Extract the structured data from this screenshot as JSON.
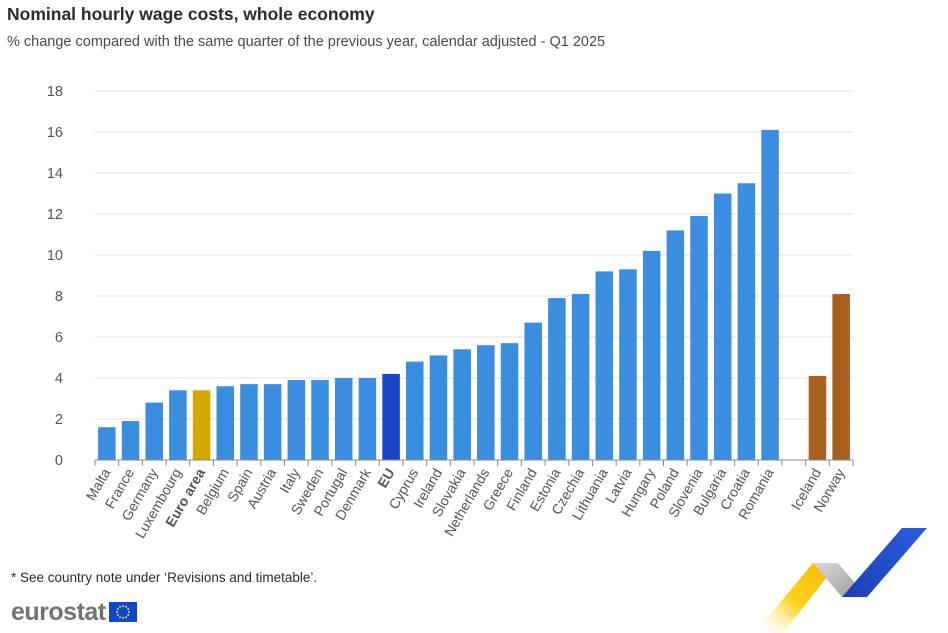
{
  "header": {
    "title": "Nominal hourly wage costs, whole economy",
    "subtitle": "% change compared with the same quarter of the previous year, calendar adjusted - Q1 2025"
  },
  "footer": {
    "note": "* See country note under ‘Revisions and timetable’.",
    "logo_text": "eurostat"
  },
  "colors": {
    "country": "#3b8ddf",
    "euro_area": "#d4a800",
    "eu": "#1946c7",
    "efta": "#a8601e",
    "grid": "#e0e0e0",
    "axis_text": "#555555"
  },
  "chart_data": {
    "type": "bar",
    "title": "Nominal hourly wage costs, whole economy",
    "subtitle": "% change compared with the same quarter of the previous year, calendar adjusted - Q1 2025",
    "ylim": [
      0,
      18
    ],
    "yticks": [
      "0",
      "2",
      "4",
      "6",
      "8",
      "10",
      "12",
      "14",
      "16",
      "18"
    ],
    "grid": true,
    "bars": [
      {
        "label": "Malta",
        "value": 1.6,
        "group": "country"
      },
      {
        "label": "France",
        "value": 1.9,
        "group": "country"
      },
      {
        "label": "Germany",
        "value": 2.8,
        "group": "country"
      },
      {
        "label": "Luxembourg",
        "value": 3.4,
        "group": "country"
      },
      {
        "label": "Euro area",
        "value": 3.4,
        "group": "euro_area"
      },
      {
        "label": "Belgium",
        "value": 3.6,
        "group": "country"
      },
      {
        "label": "Spain",
        "value": 3.7,
        "group": "country"
      },
      {
        "label": "Austria",
        "value": 3.7,
        "group": "country"
      },
      {
        "label": "Italy",
        "value": 3.9,
        "group": "country"
      },
      {
        "label": "Sweden",
        "value": 3.9,
        "group": "country"
      },
      {
        "label": "Portugal",
        "value": 4.0,
        "group": "country"
      },
      {
        "label": "Denmark",
        "value": 4.0,
        "group": "country"
      },
      {
        "label": "EU",
        "value": 4.2,
        "group": "eu"
      },
      {
        "label": "Cyprus",
        "value": 4.8,
        "group": "country"
      },
      {
        "label": "Ireland",
        "value": 5.1,
        "group": "country"
      },
      {
        "label": "Slovakia",
        "value": 5.4,
        "group": "country"
      },
      {
        "label": "Netherlands",
        "value": 5.6,
        "group": "country"
      },
      {
        "label": "Greece",
        "value": 5.7,
        "group": "country"
      },
      {
        "label": "Finland",
        "value": 6.7,
        "group": "country"
      },
      {
        "label": "Estonia",
        "value": 7.9,
        "group": "country"
      },
      {
        "label": "Czechia",
        "value": 8.1,
        "group": "country"
      },
      {
        "label": "Lithuania",
        "value": 9.2,
        "group": "country"
      },
      {
        "label": "Latvia",
        "value": 9.3,
        "group": "country"
      },
      {
        "label": "Hungary",
        "value": 10.2,
        "group": "country"
      },
      {
        "label": "Poland",
        "value": 11.2,
        "group": "country"
      },
      {
        "label": "Slovenia",
        "value": 11.9,
        "group": "country"
      },
      {
        "label": "Bulgaria",
        "value": 13.0,
        "group": "country"
      },
      {
        "label": "Croatia",
        "value": 13.5,
        "group": "country"
      },
      {
        "label": "Romania",
        "value": 16.1,
        "group": "country"
      },
      {
        "label": "",
        "value": null,
        "group": "gap"
      },
      {
        "label": "Iceland",
        "value": 4.1,
        "group": "efta"
      },
      {
        "label": "Norway",
        "value": 8.1,
        "group": "efta"
      }
    ]
  }
}
